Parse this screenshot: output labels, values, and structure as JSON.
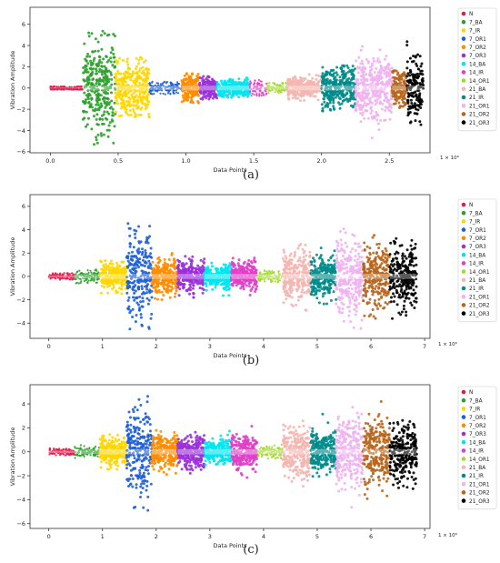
{
  "figure": {
    "panel_labels": [
      "(a)",
      "(b)",
      "(c)"
    ]
  },
  "series_colors": {
    "N": "#e6194b",
    "7_BA": "#2ca02c",
    "7_IR": "#ffd700",
    "7_OR1": "#1f5fd6",
    "7_OR2": "#ff8c00",
    "7_OR3": "#9b30d9",
    "14_BA": "#00e5ee",
    "14_IR": "#e040c8",
    "14_OR1": "#a3d930",
    "21_BA": "#f4b6b0",
    "21_IR": "#008b8b",
    "21_OR1": "#f0b2f0",
    "21_OR2": "#b8651b",
    "21_OR3": "#000000"
  },
  "chart_data": [
    {
      "type": "scatter",
      "title": "",
      "xlabel": "Data Points",
      "ylabel": "Vibration Amplitude",
      "x_multiplier": "1 × 10⁶",
      "xlim": [
        -0.15,
        2.8
      ],
      "ylim": [
        -6.1,
        7.6
      ],
      "xticks": [
        0.0,
        0.5,
        1.0,
        1.5,
        2.0,
        2.5
      ],
      "xtick_labels": [
        "0.0",
        "0.5",
        "1.0",
        "1.5",
        "2.0",
        "2.5"
      ],
      "yticks": [
        -6,
        -4,
        -2,
        0,
        2,
        4,
        6
      ],
      "ytick_labels": [
        "−6",
        "−4",
        "−2",
        "0",
        "2",
        "4",
        "6"
      ],
      "legend": {
        "position": "outside-right",
        "entries": [
          "N",
          "7_BA",
          "7_IR",
          "7_OR1",
          "7_OR2",
          "7_OR3",
          "14_BA",
          "14_IR",
          "14_OR1",
          "21_BA",
          "21_IR",
          "21_OR1",
          "21_OR2",
          "21_OR3"
        ]
      },
      "series": [
        {
          "name": "N",
          "x_range": [
            0.0,
            0.24
          ],
          "amp": 0.15,
          "spread": 0.15
        },
        {
          "name": "7_BA",
          "x_range": [
            0.24,
            0.48
          ],
          "amp": 5.4,
          "spread": 2.1
        },
        {
          "name": "7_IR",
          "x_range": [
            0.48,
            0.73
          ],
          "amp": 2.9,
          "spread": 1.3
        },
        {
          "name": "7_OR1",
          "x_range": [
            0.73,
            0.97
          ],
          "amp": 0.6,
          "spread": 0.3
        },
        {
          "name": "7_OR2",
          "x_range": [
            0.97,
            1.1
          ],
          "amp": 1.4,
          "spread": 0.7
        },
        {
          "name": "7_OR3",
          "x_range": [
            1.1,
            1.23
          ],
          "amp": 1.1,
          "spread": 0.5
        },
        {
          "name": "14_BA",
          "x_range": [
            1.23,
            1.47
          ],
          "amp": 1.2,
          "spread": 0.4
        },
        {
          "name": "14_IR",
          "x_range": [
            1.47,
            1.6
          ],
          "amp": 0.8,
          "spread": 0.35
        },
        {
          "name": "14_OR1",
          "x_range": [
            1.6,
            1.75
          ],
          "amp": 0.5,
          "spread": 0.25
        },
        {
          "name": "21_BA",
          "x_range": [
            1.75,
            2.0
          ],
          "amp": 1.3,
          "spread": 0.45
        },
        {
          "name": "21_IR",
          "x_range": [
            2.0,
            2.25
          ],
          "amp": 2.2,
          "spread": 0.95
        },
        {
          "name": "21_OR1",
          "x_range": [
            2.25,
            2.52
          ],
          "amp": 7.4,
          "spread": 1.5
        },
        {
          "name": "21_OR2",
          "x_range": [
            2.52,
            2.63
          ],
          "amp": 2.0,
          "spread": 0.8
        },
        {
          "name": "21_OR3",
          "x_range": [
            2.63,
            2.75
          ],
          "amp": 5.0,
          "spread": 1.5
        }
      ]
    },
    {
      "type": "scatter",
      "title": "",
      "xlabel": "Data Points",
      "ylabel": "Vibration Amplitude",
      "x_multiplier": "1 × 10⁶",
      "xlim": [
        -0.35,
        7.1
      ],
      "ylim": [
        -5.3,
        7.0
      ],
      "xticks": [
        0,
        1,
        2,
        3,
        4,
        5,
        6,
        7
      ],
      "xtick_labels": [
        "0",
        "1",
        "2",
        "3",
        "4",
        "5",
        "6",
        "7"
      ],
      "yticks": [
        -4,
        -2,
        0,
        2,
        4,
        6
      ],
      "ytick_labels": [
        "−4",
        "−2",
        "0",
        "2",
        "4",
        "6"
      ],
      "legend": {
        "position": "outside-right",
        "entries": [
          "N",
          "7_BA",
          "7_IR",
          "7_OR1",
          "7_OR2",
          "7_OR3",
          "14_BA",
          "14_IR",
          "14_OR1",
          "21_BA",
          "21_IR",
          "21_OR1",
          "21_OR2",
          "21_OR3"
        ]
      },
      "series": [
        {
          "name": "N",
          "x_range": [
            0.0,
            0.48
          ],
          "amp": 0.3,
          "spread": 0.15
        },
        {
          "name": "7_BA",
          "x_range": [
            0.48,
            0.95
          ],
          "amp": 0.6,
          "spread": 0.25
        },
        {
          "name": "7_IR",
          "x_range": [
            0.95,
            1.45
          ],
          "amp": 1.5,
          "spread": 0.6
        },
        {
          "name": "7_OR1",
          "x_range": [
            1.45,
            1.92
          ],
          "amp": 4.9,
          "spread": 1.8
        },
        {
          "name": "7_OR2",
          "x_range": [
            1.92,
            2.4
          ],
          "amp": 2.0,
          "spread": 0.75
        },
        {
          "name": "7_OR3",
          "x_range": [
            2.4,
            2.9
          ],
          "amp": 1.9,
          "spread": 0.65
        },
        {
          "name": "14_BA",
          "x_range": [
            2.9,
            3.4
          ],
          "amp": 2.3,
          "spread": 0.5
        },
        {
          "name": "14_IR",
          "x_range": [
            3.4,
            3.88
          ],
          "amp": 1.6,
          "spread": 0.6
        },
        {
          "name": "14_OR1",
          "x_range": [
            3.88,
            4.36
          ],
          "amp": 0.6,
          "spread": 0.25
        },
        {
          "name": "21_BA",
          "x_range": [
            4.36,
            4.88
          ],
          "amp": 3.0,
          "spread": 1.0
        },
        {
          "name": "21_IR",
          "x_range": [
            4.88,
            5.35
          ],
          "amp": 3.0,
          "spread": 0.9
        },
        {
          "name": "21_OR1",
          "x_range": [
            5.35,
            5.85
          ],
          "amp": 6.6,
          "spread": 1.5
        },
        {
          "name": "21_OR2",
          "x_range": [
            5.85,
            6.35
          ],
          "amp": 3.6,
          "spread": 1.35
        },
        {
          "name": "21_OR3",
          "x_range": [
            6.35,
            6.85
          ],
          "amp": 4.0,
          "spread": 1.4
        }
      ]
    },
    {
      "type": "scatter",
      "title": "",
      "xlabel": "Data Points",
      "ylabel": "Vibration Amplitude",
      "x_multiplier": "1 × 10⁶",
      "xlim": [
        -0.35,
        7.1
      ],
      "ylim": [
        -6.4,
        5.6
      ],
      "xticks": [
        0,
        1,
        2,
        3,
        4,
        5,
        6,
        7
      ],
      "xtick_labels": [
        "0",
        "1",
        "2",
        "3",
        "4",
        "5",
        "6",
        "7"
      ],
      "yticks": [
        -6,
        -4,
        -2,
        0,
        2,
        4
      ],
      "ytick_labels": [
        "−6",
        "−4",
        "−2",
        "0",
        "2",
        "4"
      ],
      "legend": {
        "position": "outside-right",
        "entries": [
          "N",
          "7_BA",
          "7_IR",
          "7_OR1",
          "7_OR2",
          "7_OR3",
          "14_BA",
          "14_IR",
          "14_OR1",
          "21_BA",
          "21_IR",
          "21_OR1",
          "21_OR2",
          "21_OR3"
        ]
      },
      "series": [
        {
          "name": "N",
          "x_range": [
            0.0,
            0.48
          ],
          "amp": 0.3,
          "spread": 0.15
        },
        {
          "name": "7_BA",
          "x_range": [
            0.48,
            0.95
          ],
          "amp": 0.6,
          "spread": 0.25
        },
        {
          "name": "7_IR",
          "x_range": [
            0.95,
            1.45
          ],
          "amp": 1.5,
          "spread": 0.6
        },
        {
          "name": "7_OR1",
          "x_range": [
            1.45,
            1.92
          ],
          "amp": 5.0,
          "spread": 1.8
        },
        {
          "name": "7_OR2",
          "x_range": [
            1.92,
            2.4
          ],
          "amp": 2.0,
          "spread": 0.75
        },
        {
          "name": "7_OR3",
          "x_range": [
            2.4,
            2.9
          ],
          "amp": 1.9,
          "spread": 0.65
        },
        {
          "name": "14_BA",
          "x_range": [
            2.9,
            3.4
          ],
          "amp": 2.3,
          "spread": 0.5
        },
        {
          "name": "14_IR",
          "x_range": [
            3.4,
            3.88
          ],
          "amp": 2.5,
          "spread": 0.7
        },
        {
          "name": "14_OR1",
          "x_range": [
            3.88,
            4.36
          ],
          "amp": 0.6,
          "spread": 0.25
        },
        {
          "name": "21_BA",
          "x_range": [
            4.36,
            4.88
          ],
          "amp": 2.9,
          "spread": 1.0
        },
        {
          "name": "21_IR",
          "x_range": [
            4.88,
            5.35
          ],
          "amp": 3.8,
          "spread": 0.9
        },
        {
          "name": "21_OR1",
          "x_range": [
            5.35,
            5.85
          ],
          "amp": 6.0,
          "spread": 1.5
        },
        {
          "name": "21_OR2",
          "x_range": [
            5.85,
            6.35
          ],
          "amp": 4.5,
          "spread": 1.35
        },
        {
          "name": "21_OR3",
          "x_range": [
            6.35,
            6.85
          ],
          "amp": 3.2,
          "spread": 1.2
        }
      ]
    }
  ]
}
